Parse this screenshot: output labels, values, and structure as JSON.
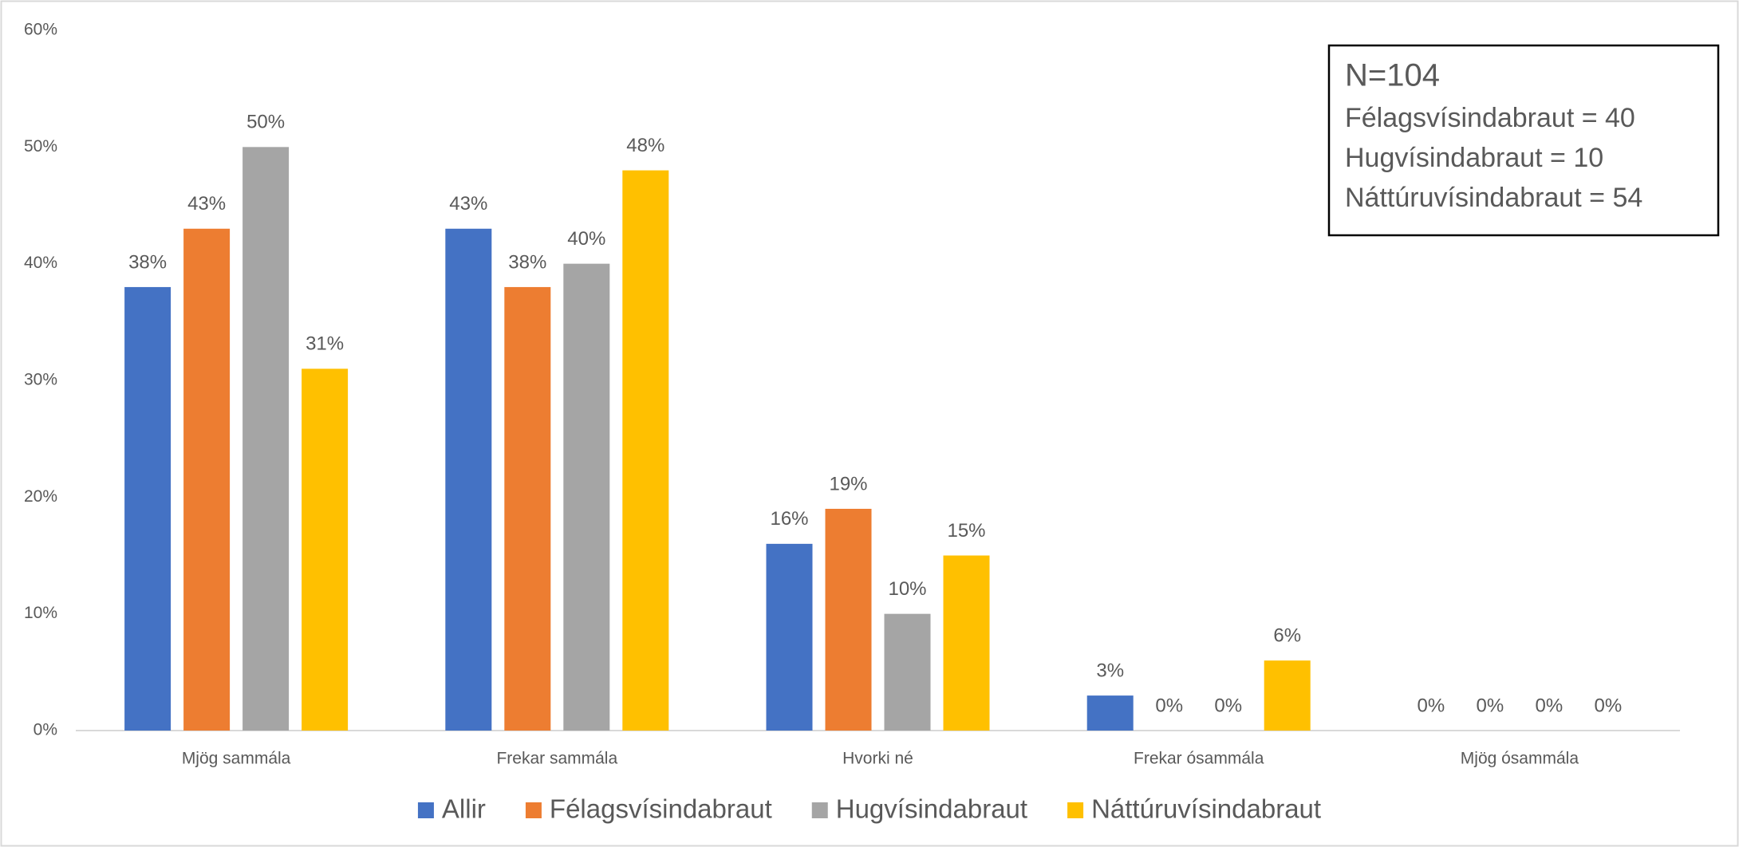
{
  "chart_data": {
    "type": "bar",
    "categories": [
      "Mjög sammála",
      "Frekar sammála",
      "Hvorki né",
      "Frekar ósammála",
      "Mjög ósammála"
    ],
    "series": [
      {
        "name": "Allir",
        "color": "#4472c4",
        "values": [
          38,
          43,
          16,
          3,
          0
        ],
        "value_labels": [
          "38%",
          "43%",
          "16%",
          "3%",
          "0%"
        ]
      },
      {
        "name": "Félagsvísindabraut",
        "color": "#ed7d31",
        "values": [
          43,
          38,
          19,
          0,
          0
        ],
        "value_labels": [
          "43%",
          "38%",
          "19%",
          "0%",
          "0%"
        ]
      },
      {
        "name": "Hugvísindabraut",
        "color": "#a5a5a5",
        "values": [
          50,
          40,
          10,
          0,
          0
        ],
        "value_labels": [
          "50%",
          "40%",
          "10%",
          "0%",
          "0%"
        ]
      },
      {
        "name": "Náttúruvísindabraut",
        "color": "#ffc000",
        "values": [
          31,
          48,
          15,
          6,
          0
        ],
        "value_labels": [
          "31%",
          "48%",
          "15%",
          "6%",
          "0%"
        ]
      }
    ],
    "ylim": [
      0,
      60
    ],
    "yticks": [
      {
        "value": 0,
        "label": "0%"
      },
      {
        "value": 10,
        "label": "10%"
      },
      {
        "value": 20,
        "label": "20%"
      },
      {
        "value": 30,
        "label": "30%"
      },
      {
        "value": 40,
        "label": "40%"
      },
      {
        "value": 50,
        "label": "50%"
      },
      {
        "value": 60,
        "label": "60%"
      }
    ],
    "grid": false,
    "legend": "bottom",
    "annotations": [
      "N=104",
      "Félagsvísindabraut = 40",
      "Hugvísindabraut = 10",
      "Náttúruvísindabraut = 54"
    ]
  }
}
